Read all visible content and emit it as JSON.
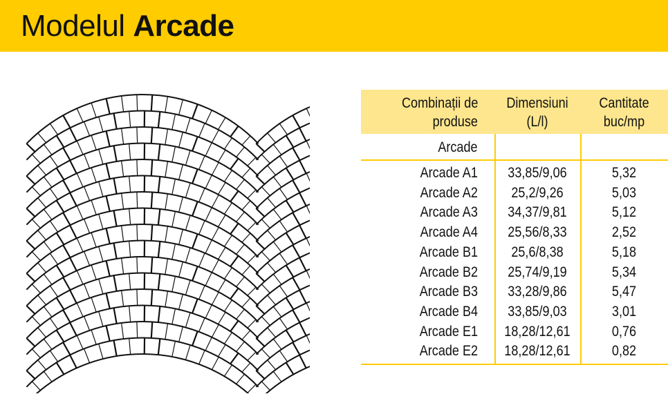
{
  "header": {
    "title_light": "Modelul",
    "title_bold": "Arcade",
    "color": "#FFCC00"
  },
  "table": {
    "header_bg": "#FDE68D",
    "columns": [
      {
        "line1": "Combinații de",
        "line2": "produse"
      },
      {
        "line1": "Dimensiuni",
        "line2": "(L/l)"
      },
      {
        "line1": "Cantitate",
        "line2": "buc/mp"
      }
    ],
    "group": "Arcade",
    "rows": [
      {
        "name": "Arcade A1",
        "dim": "33,85/9,06",
        "qty": "5,32"
      },
      {
        "name": "Arcade A2",
        "dim": "25,2/9,26",
        "qty": "5,03"
      },
      {
        "name": "Arcade A3",
        "dim": "34,37/9,81",
        "qty": "5,12"
      },
      {
        "name": "Arcade A4",
        "dim": "25,56/8,33",
        "qty": "2,52"
      },
      {
        "name": "Arcade B1",
        "dim": "25,6/8,38",
        "qty": "5,18"
      },
      {
        "name": "Arcade B2",
        "dim": "25,74/9,19",
        "qty": "5,34"
      },
      {
        "name": "Arcade B3",
        "dim": "33,28/9,86",
        "qty": "5,47"
      },
      {
        "name": "Arcade B4",
        "dim": "33,85/9,03",
        "qty": "3,01"
      },
      {
        "name": "Arcade E1",
        "dim": "18,28/12,61",
        "qty": "0,76"
      },
      {
        "name": "Arcade E2",
        "dim": "18,28/12,61",
        "qty": "0,82"
      }
    ]
  }
}
